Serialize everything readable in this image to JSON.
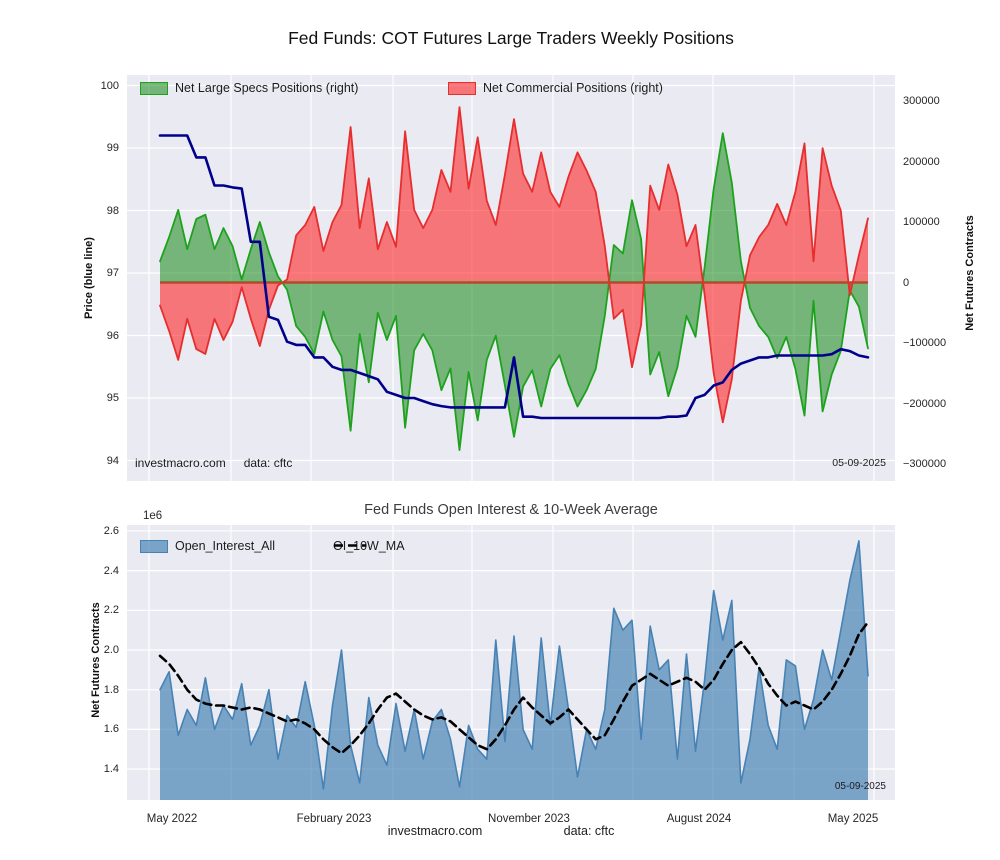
{
  "figure": {
    "footer_left": "investmacro.com",
    "footer_right": "data: cftc"
  },
  "chart_data": [
    {
      "id": "cot-positions",
      "type": "area",
      "title": "Fed Funds: COT Futures Large Traders Weekly Positions",
      "x_range": "weekly, May 2022 to May 2025 (points evenly spaced)",
      "ylabel_left": "Price (blue line)",
      "ylabel_right": "Net Futures Contracts",
      "ylim_left": [
        93.67,
        100.17
      ],
      "ylim_right": [
        -328000,
        343000
      ],
      "yticks_left": [
        100,
        99,
        98,
        97,
        96,
        95,
        94
      ],
      "yticks_left_labels": [
        "100",
        "99",
        "98",
        "97",
        "96",
        "95",
        "94"
      ],
      "yticks_right": [
        300000,
        200000,
        100000,
        0,
        -100000,
        -200000,
        -300000
      ],
      "yticks_right_labels": [
        "300000",
        "200000",
        "100000",
        "0",
        "−100000",
        "−200000",
        "−300000"
      ],
      "grid": true,
      "legend_position": "upper left, horizontal",
      "annotations": {
        "watermark": "investmacro.com",
        "source": "data: cftc",
        "date": "05-09-2025"
      },
      "series": [
        {
          "name": "Net Large Specs Positions (right)",
          "axis": "right",
          "style": "area",
          "unit": "contracts (thousands)",
          "scale": 1000,
          "color_fill": "rgba(0,128,0,0.5)",
          "color_line": "#1ea21e",
          "values": [
            35,
            75,
            120,
            55,
            105,
            112,
            55,
            90,
            60,
            5,
            55,
            100,
            50,
            10,
            -12,
            -72,
            -90,
            -118,
            -48,
            -95,
            -122,
            -245,
            -85,
            -165,
            -50,
            -95,
            -55,
            -240,
            -112,
            -85,
            -112,
            -178,
            -142,
            -277,
            -148,
            -228,
            -128,
            -88,
            -170,
            -255,
            -172,
            -145,
            -205,
            -143,
            -120,
            -168,
            -205,
            -178,
            -143,
            -55,
            62,
            48,
            136,
            72,
            -152,
            -115,
            -188,
            -140,
            -55,
            -90,
            25,
            155,
            247,
            165,
            35,
            -42,
            -72,
            -90,
            -125,
            -90,
            -143,
            -220,
            -30,
            -213,
            -152,
            -113,
            -13,
            -40,
            -109
          ]
        },
        {
          "name": "Net Commercial Positions (right)",
          "axis": "right",
          "style": "area",
          "unit": "contracts (thousands)",
          "scale": 1000,
          "color_fill": "rgba(255,0,0,0.5)",
          "color_line": "#e62e2e",
          "values": [
            -38,
            -80,
            -128,
            -60,
            -110,
            -118,
            -60,
            -95,
            -65,
            -8,
            -60,
            -105,
            -45,
            -5,
            5,
            78,
            95,
            125,
            52,
            100,
            128,
            257,
            90,
            172,
            55,
            100,
            59,
            250,
            120,
            90,
            120,
            186,
            150,
            290,
            155,
            240,
            135,
            95,
            178,
            270,
            180,
            150,
            215,
            150,
            125,
            175,
            215,
            185,
            150,
            60,
            -60,
            -45,
            -140,
            -70,
            160,
            120,
            195,
            145,
            60,
            95,
            -20,
            -150,
            -231,
            -160,
            -30,
            45,
            75,
            95,
            130,
            95,
            150,
            230,
            35,
            222,
            160,
            119,
            -21,
            45,
            106
          ]
        },
        {
          "name": "Price (blue line)",
          "axis": "left",
          "style": "line",
          "unit": "price",
          "scale": 1,
          "color_line": "#00008b",
          "values": [
            99.2,
            99.2,
            99.2,
            99.2,
            98.85,
            98.85,
            98.4,
            98.4,
            98.37,
            98.35,
            97.5,
            97.5,
            96.3,
            96.25,
            95.9,
            95.85,
            95.85,
            95.65,
            95.65,
            95.5,
            95.45,
            95.45,
            95.4,
            95.35,
            95.3,
            95.1,
            95.05,
            95.0,
            95.0,
            94.95,
            94.9,
            94.87,
            94.85,
            94.85,
            94.85,
            94.85,
            94.85,
            94.85,
            94.85,
            95.65,
            94.7,
            94.7,
            94.68,
            94.68,
            94.68,
            94.68,
            94.68,
            94.68,
            94.68,
            94.68,
            94.68,
            94.68,
            94.68,
            94.68,
            94.68,
            94.68,
            94.7,
            94.7,
            94.72,
            95.0,
            95.05,
            95.2,
            95.25,
            95.45,
            95.55,
            95.6,
            95.65,
            95.65,
            95.68,
            95.68,
            95.68,
            95.68,
            95.68,
            95.68,
            95.7,
            95.78,
            95.75,
            95.68,
            95.65
          ]
        }
      ]
    },
    {
      "id": "open-interest",
      "type": "area",
      "title": "Fed Funds Open Interest & 10-Week Average",
      "ylabel_left": "Net Futures Contracts",
      "offset_label": "1e6",
      "ylim": [
        1.244,
        2.63
      ],
      "yticks": [
        2.6,
        2.4,
        2.2,
        2.0,
        1.8,
        1.6,
        1.4
      ],
      "yticks_labels": [
        "2.6",
        "2.4",
        "2.2",
        "2.0",
        "1.8",
        "1.6",
        "1.4"
      ],
      "xticklabels": [
        "May 2022",
        "February 2023",
        "November 2023",
        "August 2024",
        "May 2025"
      ],
      "grid": true,
      "annotations": {
        "date": "05-09-2025"
      },
      "series": [
        {
          "name": "Open_Interest_All",
          "style": "area",
          "unit": "contracts (millions, 1e6)",
          "scale": 1,
          "color_fill": "rgba(70,130,180,0.68)",
          "color_line": "#4682b4",
          "values": [
            1.8,
            1.89,
            1.57,
            1.7,
            1.62,
            1.86,
            1.6,
            1.72,
            1.65,
            1.83,
            1.52,
            1.62,
            1.8,
            1.45,
            1.67,
            1.61,
            1.84,
            1.62,
            1.3,
            1.72,
            2.0,
            1.52,
            1.33,
            1.76,
            1.52,
            1.42,
            1.73,
            1.49,
            1.7,
            1.45,
            1.64,
            1.7,
            1.55,
            1.31,
            1.62,
            1.5,
            1.45,
            2.05,
            1.54,
            2.07,
            1.6,
            1.5,
            2.06,
            1.62,
            2.02,
            1.7,
            1.36,
            1.6,
            1.5,
            1.7,
            2.21,
            2.1,
            2.15,
            1.55,
            2.12,
            1.9,
            1.95,
            1.45,
            1.98,
            1.49,
            1.85,
            2.3,
            2.05,
            2.25,
            1.33,
            1.55,
            1.91,
            1.62,
            1.5,
            1.95,
            1.92,
            1.6,
            1.75,
            2.0,
            1.85,
            2.1,
            2.35,
            2.55,
            1.87
          ]
        },
        {
          "name": "OI_10W_MA",
          "style": "dashed-line",
          "unit": "contracts (millions, 1e6)",
          "scale": 1,
          "color_line": "#000000",
          "values": [
            1.97,
            1.93,
            1.87,
            1.8,
            1.75,
            1.73,
            1.72,
            1.72,
            1.71,
            1.7,
            1.71,
            1.7,
            1.68,
            1.66,
            1.64,
            1.65,
            1.63,
            1.6,
            1.55,
            1.51,
            1.48,
            1.52,
            1.57,
            1.63,
            1.7,
            1.76,
            1.78,
            1.74,
            1.7,
            1.67,
            1.65,
            1.66,
            1.64,
            1.6,
            1.56,
            1.52,
            1.5,
            1.55,
            1.62,
            1.7,
            1.76,
            1.71,
            1.67,
            1.63,
            1.66,
            1.7,
            1.65,
            1.6,
            1.55,
            1.57,
            1.65,
            1.74,
            1.82,
            1.85,
            1.88,
            1.85,
            1.82,
            1.84,
            1.86,
            1.84,
            1.8,
            1.85,
            1.93,
            2.0,
            2.04,
            1.98,
            1.91,
            1.83,
            1.77,
            1.72,
            1.74,
            1.72,
            1.7,
            1.74,
            1.8,
            1.88,
            1.97,
            2.08,
            2.14
          ]
        }
      ]
    }
  ]
}
